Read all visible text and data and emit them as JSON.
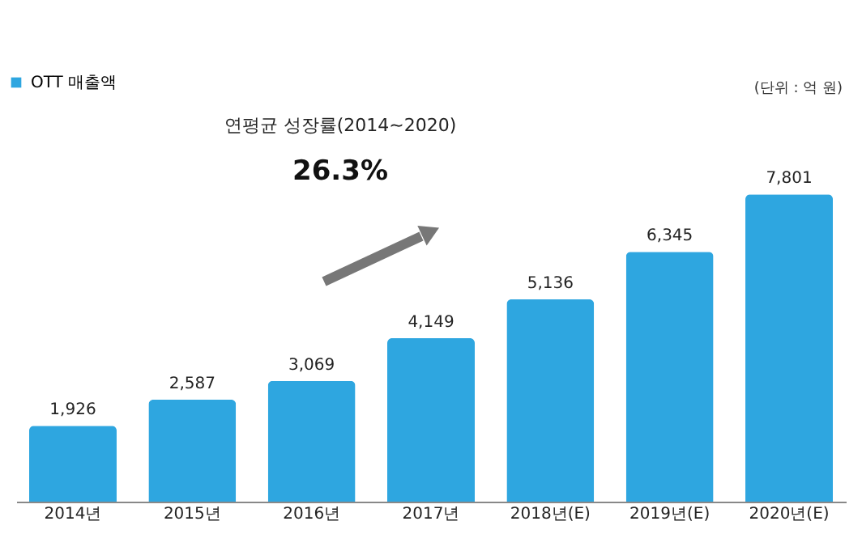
{
  "chart_data": {
    "type": "bar",
    "categories": [
      "2014년",
      "2015년",
      "2016년",
      "2017년",
      "2018년(E)",
      "2019년(E)",
      "2020년(E)"
    ],
    "series": [
      {
        "name": "OTT 매출액",
        "color": "#2ea6e0",
        "values": [
          1926,
          2587,
          3069,
          4149,
          5136,
          6345,
          7801
        ],
        "value_labels": [
          "1,926",
          "2,587",
          "3,069",
          "4,149",
          "5,136",
          "6,345",
          "7,801"
        ]
      }
    ],
    "legend": "top left",
    "grid": false,
    "annotations": [
      "(단위 : 억 원)",
      "연평균 성장률(2014~2020)",
      "26.3%"
    ]
  }
}
